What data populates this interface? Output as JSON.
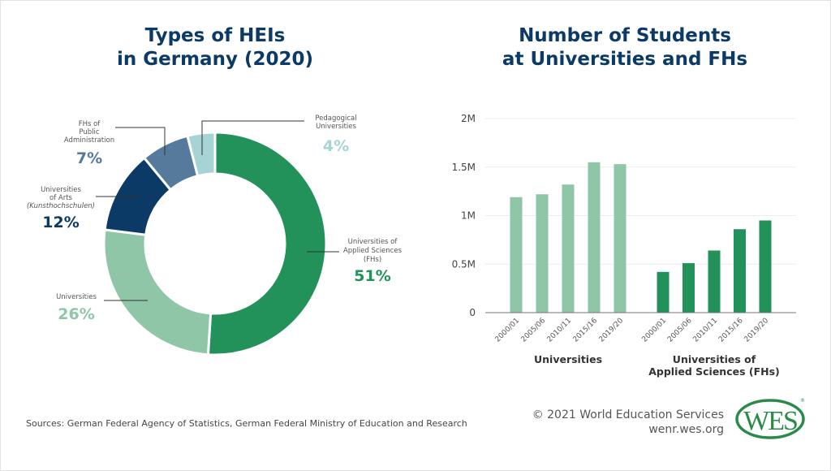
{
  "colors": {
    "title": "#0b3a66",
    "fhs": "#23925a",
    "universities": "#8fc6a8",
    "arts": "#0b3a66",
    "public_admin": "#557a9c",
    "pedagogical": "#a6d3d4",
    "logo": "#2b8a4a"
  },
  "chart_data": [
    {
      "type": "pie",
      "donut": true,
      "title": "Types of HEIs in Germany (2020)",
      "title_lines": [
        "Types of HEIs",
        "in Germany (2020)"
      ],
      "slices": [
        {
          "label": "Universities of Applied Sciences (FHs)",
          "label_lines": [
            "Universities of",
            "Applied Sciences",
            "(FHs)"
          ],
          "value": 51,
          "display": "51%",
          "color": "#23925a"
        },
        {
          "label": "Universities",
          "label_lines": [
            "Universities"
          ],
          "value": 26,
          "display": "26%",
          "color": "#8fc6a8"
        },
        {
          "label": "Universities of Arts (Kunsthochschulen)",
          "label_lines": [
            "Universities",
            "of Arts",
            "(Kunsthochschulen)"
          ],
          "value": 12,
          "display": "12%",
          "color": "#0b3a66"
        },
        {
          "label": "FHs of Public Administration",
          "label_lines": [
            "FHs of",
            "Public",
            "Administration"
          ],
          "value": 7,
          "display": "7%",
          "color": "#557a9c"
        },
        {
          "label": "Pedagogical Universities",
          "label_lines": [
            "Pedagogical",
            "Universities"
          ],
          "value": 4,
          "display": "4%",
          "color": "#a6d3d4"
        }
      ]
    },
    {
      "type": "bar",
      "title": "Number of Students at Universities and FHs",
      "title_lines": [
        "Number of Students",
        "at Universities and FHs"
      ],
      "ylim": [
        0,
        2000000
      ],
      "yticks": [
        {
          "v": 0,
          "label": "0"
        },
        {
          "v": 500000,
          "label": "0.5M"
        },
        {
          "v": 1000000,
          "label": "1M"
        },
        {
          "v": 1500000,
          "label": "1.5M"
        },
        {
          "v": 2000000,
          "label": "2M"
        }
      ],
      "grid": true,
      "categories": [
        "2000/01",
        "2005/06",
        "2010/11",
        "2015/16",
        "2019/20"
      ],
      "series": [
        {
          "name": "Universities",
          "color": "#8fc6a8",
          "values": [
            1190000,
            1220000,
            1320000,
            1550000,
            1530000
          ]
        },
        {
          "name": "Universities of Applied Sciences (FHs)",
          "name_lines": [
            "Universities of",
            "Applied Sciences (FHs)"
          ],
          "color": "#23925a",
          "values": [
            420000,
            510000,
            640000,
            860000,
            950000
          ]
        }
      ]
    }
  ],
  "footer": {
    "sources": "Sources: German Federal Agency of Statistics, German Federal Ministry of Education and Research",
    "copyright": "© 2021 World Education Services",
    "url": "wenr.wes.org",
    "logo_text": "WES"
  }
}
